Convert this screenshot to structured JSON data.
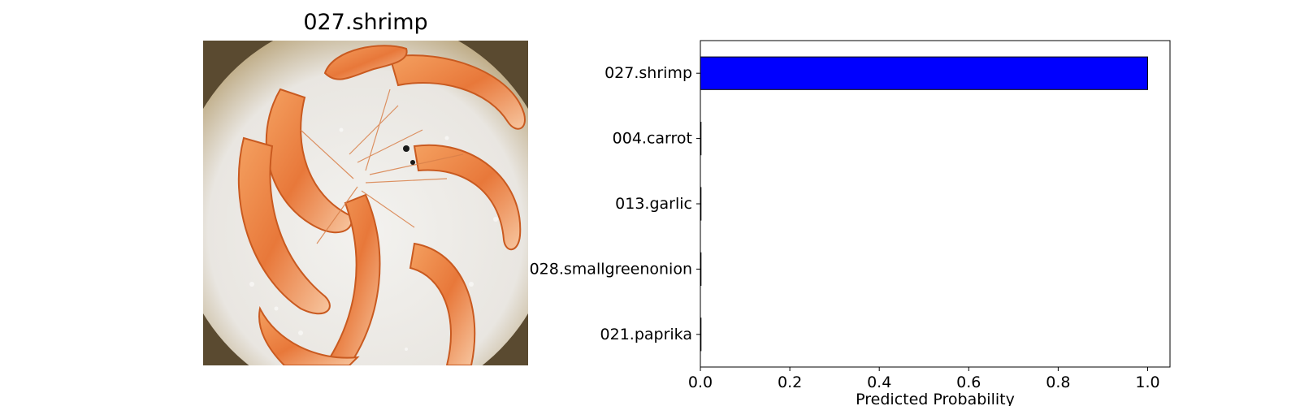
{
  "image_panel": {
    "title": "027.shrimp",
    "photo_subject": "shrimp-on-rock-salt"
  },
  "chart_data": {
    "type": "bar",
    "orientation": "horizontal",
    "categories": [
      "027.shrimp",
      "004.carrot",
      "013.garlic",
      "028.smallgreenonion",
      "021.paprika"
    ],
    "values": [
      1.0,
      0.0,
      0.0,
      0.0,
      0.0
    ],
    "xlabel": "Predicted Probability",
    "ylabel": "",
    "xlim": [
      0.0,
      1.05
    ],
    "xticks": [
      "0.0",
      "0.2",
      "0.4",
      "0.6",
      "0.8",
      "1.0"
    ],
    "bar_color": "#0000ff",
    "grid": false,
    "legend": false
  }
}
